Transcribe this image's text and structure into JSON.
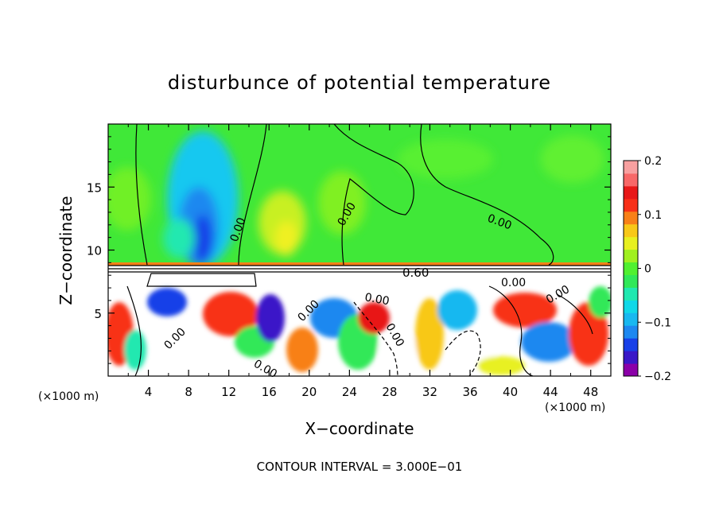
{
  "chart_data": {
    "type": "heatmap",
    "title": "disturbunce of potential temperature",
    "xlabel": "X−coordinate",
    "ylabel": "Z−coordinate",
    "x_unit_left": "(×1000 m)",
    "x_unit_right": "(×1000 m)",
    "xlim": [
      0,
      50
    ],
    "ylim": [
      0,
      20
    ],
    "xticks": [
      "4",
      "8",
      "12",
      "16",
      "20",
      "24",
      "28",
      "32",
      "36",
      "40",
      "44",
      "48"
    ],
    "yticks": [
      "5",
      "10",
      "15"
    ],
    "colorbar": {
      "range": [
        -0.2,
        0.2
      ],
      "tick_labels": [
        "0.2",
        "0.1",
        "0",
        "−0.1",
        "−0.2"
      ],
      "colors": [
        "#8b00a8",
        "#3a18c8",
        "#1840e8",
        "#1e88f0",
        "#18b8f0",
        "#10d8e8",
        "#20e8b0",
        "#30e858",
        "#50f030",
        "#a0f020",
        "#e8f020",
        "#f8c818",
        "#f88018",
        "#f83018",
        "#e81818",
        "#f86868",
        "#f8a0a0"
      ]
    },
    "contour_labels": [
      "0.00",
      "0.00",
      "0.00",
      "0.00",
      "0.00",
      "0.60",
      "0.00",
      "0.00",
      "0.00",
      "0.00",
      "0.00"
    ],
    "contour_interval": "CONTOUR INTERVAL = 3.000E−01",
    "grid": false
  }
}
